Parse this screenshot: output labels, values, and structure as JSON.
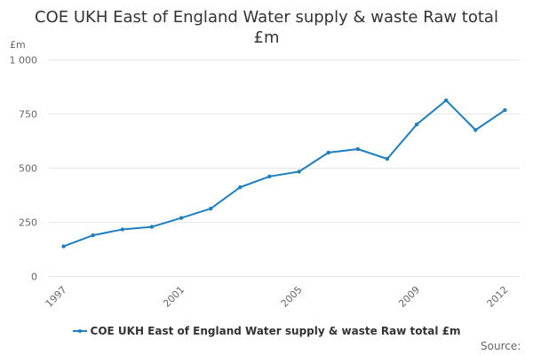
{
  "colors": {
    "series": "#1f7fbf",
    "grid": "#e6e6e6",
    "axis_text": "#666666"
  },
  "chart_data": {
    "type": "line",
    "title": "COE UKH East of England Water supply & waste Raw total £m",
    "title_lines": [
      "COE UKH East of England Water supply & waste Raw total",
      "£m"
    ],
    "ylabel": "£m",
    "xlabel": "",
    "ylim": [
      0,
      1000
    ],
    "yticks": [
      0,
      250,
      500,
      750,
      1000
    ],
    "ytick_labels": [
      "0",
      "250",
      "500",
      "750",
      "1 000"
    ],
    "xticks": [
      1997,
      2001,
      2005,
      2009,
      2012
    ],
    "xtick_labels": [
      "1997",
      "2001",
      "2005",
      "2009",
      "2012"
    ],
    "grid": true,
    "legend_position": "bottom-center",
    "x": [
      1997,
      1998,
      1999,
      2000,
      2001,
      2002,
      2003,
      2004,
      2005,
      2006,
      2007,
      2008,
      2009,
      2010,
      2011,
      2012
    ],
    "series": [
      {
        "name": "COE UKH East of England Water supply & waste Raw total £m",
        "values": [
          137,
          188,
          215,
          227,
          268,
          311,
          410,
          460,
          482,
          570,
          586,
          541,
          700,
          811,
          674,
          766
        ]
      }
    ]
  },
  "credits": "Source:"
}
